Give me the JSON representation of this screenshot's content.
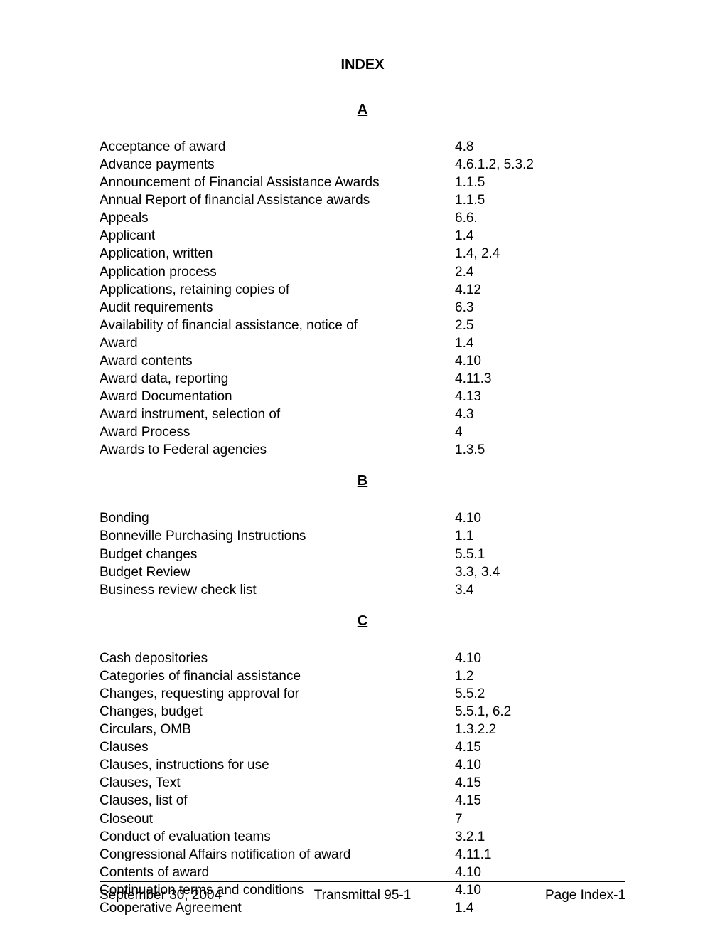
{
  "title": "INDEX",
  "sections": [
    {
      "letter": "A",
      "entries": [
        {
          "term": "Acceptance of award",
          "ref": "4.8"
        },
        {
          "term": "Advance payments",
          "ref": "4.6.1.2, 5.3.2"
        },
        {
          "term": "Announcement of Financial Assistance Awards",
          "ref": "1.1.5"
        },
        {
          "term": "Annual Report of financial Assistance awards",
          "ref": "1.1.5"
        },
        {
          "term": "Appeals",
          "ref": "6.6."
        },
        {
          "term": "Applicant",
          "ref": "1.4"
        },
        {
          "term": "Application, written",
          "ref": "1.4, 2.4"
        },
        {
          "term": "Application process",
          "ref": "2.4"
        },
        {
          "term": "Applications, retaining copies of",
          "ref": "4.12"
        },
        {
          "term": "Audit requirements",
          "ref": "6.3"
        },
        {
          "term": "Availability of financial assistance, notice of",
          "ref": "2.5"
        },
        {
          "term": "Award",
          "ref": "1.4"
        },
        {
          "term": "Award contents",
          "ref": "4.10"
        },
        {
          "term": "Award data, reporting",
          "ref": "4.11.3"
        },
        {
          "term": "Award Documentation",
          "ref": "4.13"
        },
        {
          "term": "Award instrument, selection of",
          "ref": "4.3"
        },
        {
          "term": "Award Process",
          "ref": "4"
        },
        {
          "term": "Awards to Federal agencies",
          "ref": "1.3.5"
        }
      ]
    },
    {
      "letter": "B",
      "entries": [
        {
          "term": "Bonding",
          "ref": "4.10"
        },
        {
          "term": "Bonneville Purchasing Instructions",
          "ref": "1.1"
        },
        {
          "term": "Budget changes",
          "ref": "5.5.1"
        },
        {
          "term": "Budget Review",
          "ref": "3.3, 3.4"
        },
        {
          "term": "Business review check list",
          "ref": "3.4"
        }
      ]
    },
    {
      "letter": "C",
      "entries": [
        {
          "term": "Cash depositories",
          "ref": "4.10"
        },
        {
          "term": "Categories of financial assistance",
          "ref": "1.2"
        },
        {
          "term": "Changes, requesting approval for",
          "ref": "5.5.2"
        },
        {
          "term": "Changes, budget",
          "ref": "5.5.1, 6.2"
        },
        {
          "term": "Circulars, OMB",
          "ref": "1.3.2.2"
        },
        {
          "term": "Clauses",
          "ref": "4.15"
        },
        {
          "term": "Clauses, instructions for use",
          "ref": "4.10"
        },
        {
          "term": "Clauses, Text",
          "ref": "4.15"
        },
        {
          "term": "Clauses, list of",
          "ref": "4.15"
        },
        {
          "term": "Closeout",
          "ref": "7"
        },
        {
          "term": "Conduct of evaluation teams",
          "ref": "3.2.1"
        },
        {
          "term": "Congressional Affairs notification of award",
          "ref": "4.11.1"
        },
        {
          "term": "Contents of award",
          "ref": "4.10"
        },
        {
          "term": "Continuation terms and conditions",
          "ref": "4.10"
        },
        {
          "term": "Cooperative Agreement",
          "ref": "1.4"
        }
      ]
    }
  ],
  "footer": {
    "left": "September 30, 2004",
    "center": "Transmittal 95-1",
    "right": "Page Index-1"
  }
}
